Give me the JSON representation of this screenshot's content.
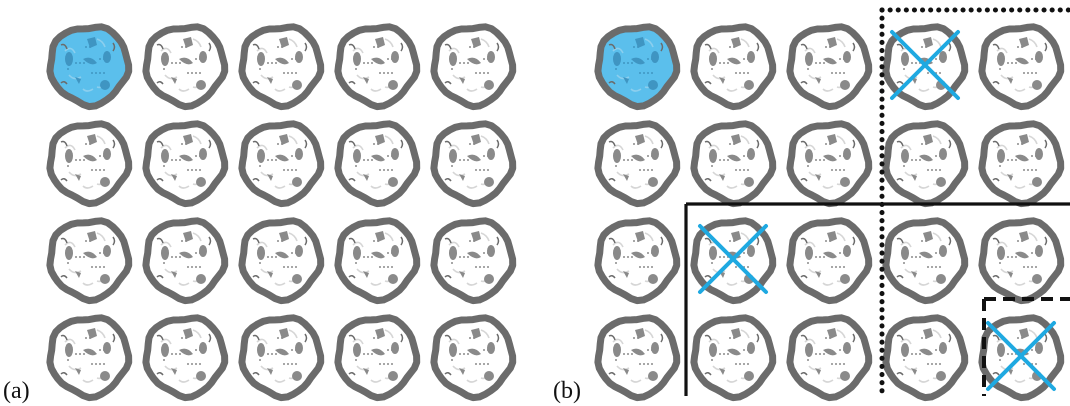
{
  "panels": [
    {
      "id": "a",
      "label": "(a)",
      "rows": 4,
      "cols": 5,
      "highlighted": [
        [
          0,
          0
        ]
      ],
      "crossed": []
    },
    {
      "id": "b",
      "label": "(b)",
      "rows": 4,
      "cols": 5,
      "highlighted": [
        [
          0,
          0
        ]
      ],
      "crossed": [
        [
          0,
          3
        ],
        [
          2,
          1
        ],
        [
          3,
          4
        ]
      ],
      "regions": [
        {
          "name": "dotted-region",
          "style": "dotted"
        },
        {
          "name": "solid-region",
          "style": "solid"
        },
        {
          "name": "dashed-region",
          "style": "dashed"
        }
      ]
    }
  ],
  "colors": {
    "cookie_outline": "#6b6b6b",
    "cookie_fill": "#ffffff",
    "highlight_fill": "#5bbfec",
    "cross": "#1fa9e1",
    "region_stroke": "#111111"
  }
}
